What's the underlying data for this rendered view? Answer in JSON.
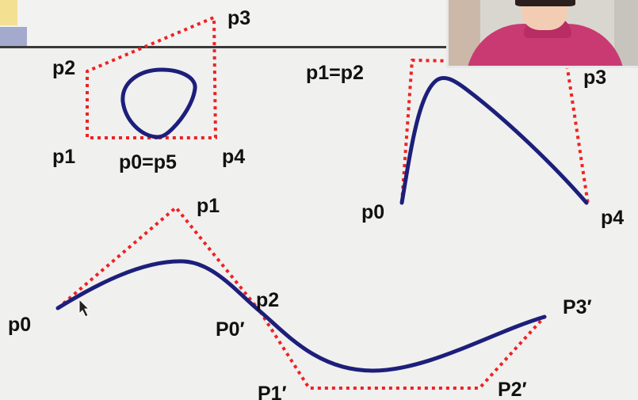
{
  "labels": {
    "d1_p3": "p3",
    "d1_p2": "p2",
    "d1_p1": "p1",
    "d1_p0p5": "p0=p5",
    "d1_p4": "p4",
    "d2_p1p2": "p1=p2",
    "d2_p3": "p3",
    "d2_p0": "p0",
    "d2_p4": "p4",
    "d3_p1": "p1",
    "d3_p0": "p0",
    "d3_p2": "p2",
    "d3_P0prime": "P0′",
    "d3_P1prime": "P1′",
    "d3_P2prime": "P2′",
    "d3_P3prime": "P3′"
  },
  "colors": {
    "control_polygon": "#ee2222",
    "curve": "#1c1f7a",
    "header_line": "#3a3a3a",
    "accent_yellow": "#f2c400",
    "accent_blue": "#2c3c96"
  }
}
